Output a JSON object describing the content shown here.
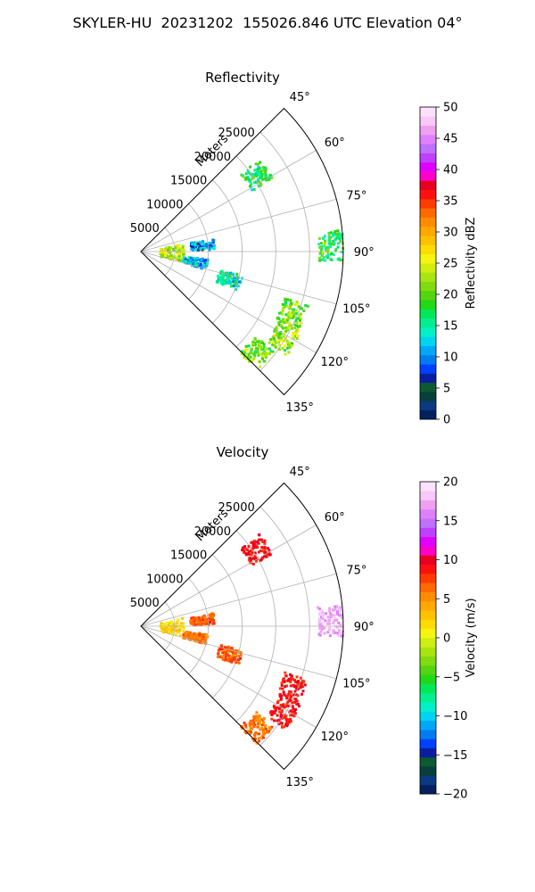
{
  "title": "SKYLER-HU  20231202  155026.846 UTC Elevation 04°",
  "chart_data": [
    {
      "type": "heatmap",
      "projection": "polar-sector",
      "title": "Reflectivity",
      "radial_label": "Meters",
      "radial_ticks": [
        5000,
        10000,
        15000,
        20000,
        25000
      ],
      "radial_tick_labels": [
        "5000",
        "10000",
        "15000",
        "20000",
        "25000"
      ],
      "angle_range_deg": [
        45,
        135
      ],
      "angle_ticks": [
        45,
        60,
        75,
        90,
        105,
        120,
        135
      ],
      "angle_tick_labels": [
        "45°",
        "60°",
        "75°",
        "90°",
        "105°",
        "120°",
        "135°"
      ],
      "grid": true,
      "colorbar": {
        "label": "Reflectivity dBZ",
        "range": [
          0,
          50
        ],
        "ticks": [
          0,
          5,
          10,
          15,
          20,
          25,
          30,
          35,
          40,
          45,
          50
        ],
        "tick_labels": [
          "0",
          "5",
          "10",
          "15",
          "20",
          "25",
          "30",
          "35",
          "40",
          "45",
          "50"
        ],
        "colors": [
          "#05205e",
          "#0a3a82",
          "#083f3a",
          "#0d5a33",
          "#0a1f9e",
          "#0040ff",
          "#007cf0",
          "#00a8f5",
          "#00d4f0",
          "#00f0c8",
          "#00f090",
          "#00e858",
          "#22d818",
          "#55d410",
          "#80dc10",
          "#a8e410",
          "#d0ee10",
          "#f5f510",
          "#ffdc00",
          "#ffc000",
          "#ffa800",
          "#ff8c00",
          "#ff6a00",
          "#ff3c00",
          "#ff1010",
          "#e80020",
          "#ff00c8",
          "#e000ff",
          "#c040ff",
          "#c070ff",
          "#e080ff",
          "#f0a0f0",
          "#f8c8f8",
          "#fce0fc"
        ]
      },
      "echo_regions": [
        {
          "range_m": 4500,
          "azimuth_deg": 90,
          "value": 24
        },
        {
          "range_m": 9000,
          "azimuth_deg": 83,
          "value": 10
        },
        {
          "range_m": 8000,
          "azimuth_deg": 100,
          "value": 12
        },
        {
          "range_m": 13500,
          "azimuth_deg": 107,
          "value": 14
        },
        {
          "range_m": 24000,
          "azimuth_deg": 112,
          "value": 21
        },
        {
          "range_m": 24500,
          "azimuth_deg": 121,
          "value": 22
        },
        {
          "range_m": 22500,
          "azimuth_deg": 131,
          "value": 21
        },
        {
          "range_m": 20500,
          "azimuth_deg": 56,
          "value": 17
        },
        {
          "range_m": 28000,
          "azimuth_deg": 88,
          "value": 18
        }
      ]
    },
    {
      "type": "heatmap",
      "projection": "polar-sector",
      "title": "Velocity",
      "radial_label": "Meters",
      "radial_ticks": [
        5000,
        10000,
        15000,
        20000,
        25000
      ],
      "radial_tick_labels": [
        "5000",
        "10000",
        "15000",
        "20000",
        "25000"
      ],
      "angle_range_deg": [
        45,
        135
      ],
      "angle_ticks": [
        45,
        60,
        75,
        90,
        105,
        120,
        135
      ],
      "angle_tick_labels": [
        "45°",
        "60°",
        "75°",
        "90°",
        "105°",
        "120°",
        "135°"
      ],
      "grid": true,
      "colorbar": {
        "label": "Velocity (m/s)",
        "range": [
          -20,
          20
        ],
        "ticks": [
          -20,
          -15,
          -10,
          -5,
          0,
          5,
          10,
          15,
          20
        ],
        "tick_labels": [
          "−20",
          "−15",
          "−10",
          "−5",
          "0",
          "5",
          "10",
          "15",
          "20"
        ],
        "colors": [
          "#05205e",
          "#0a3a82",
          "#083f3a",
          "#0d5a33",
          "#0a1f9e",
          "#0040ff",
          "#007cf0",
          "#00a8f5",
          "#00d4f0",
          "#00f0c8",
          "#00f090",
          "#00e858",
          "#22d818",
          "#55d410",
          "#80dc10",
          "#a8e410",
          "#d0ee10",
          "#f5f510",
          "#ffdc00",
          "#ffc000",
          "#ffa800",
          "#ff8c00",
          "#ff6a00",
          "#ff3c00",
          "#ff1010",
          "#e80020",
          "#ff00c8",
          "#e000ff",
          "#c040ff",
          "#c070ff",
          "#e080ff",
          "#f0a0f0",
          "#f8c8f8",
          "#fce0fc"
        ]
      },
      "echo_regions": [
        {
          "range_m": 4500,
          "azimuth_deg": 90,
          "value": 2
        },
        {
          "range_m": 9000,
          "azimuth_deg": 83,
          "value": 7
        },
        {
          "range_m": 8000,
          "azimuth_deg": 100,
          "value": 6
        },
        {
          "range_m": 13500,
          "azimuth_deg": 107,
          "value": 7
        },
        {
          "range_m": 24000,
          "azimuth_deg": 112,
          "value": 9
        },
        {
          "range_m": 24500,
          "azimuth_deg": 121,
          "value": 9
        },
        {
          "range_m": 22500,
          "azimuth_deg": 131,
          "value": 6
        },
        {
          "range_m": 20500,
          "azimuth_deg": 56,
          "value": 9
        },
        {
          "range_m": 28000,
          "azimuth_deg": 88,
          "value": 17
        }
      ]
    }
  ]
}
